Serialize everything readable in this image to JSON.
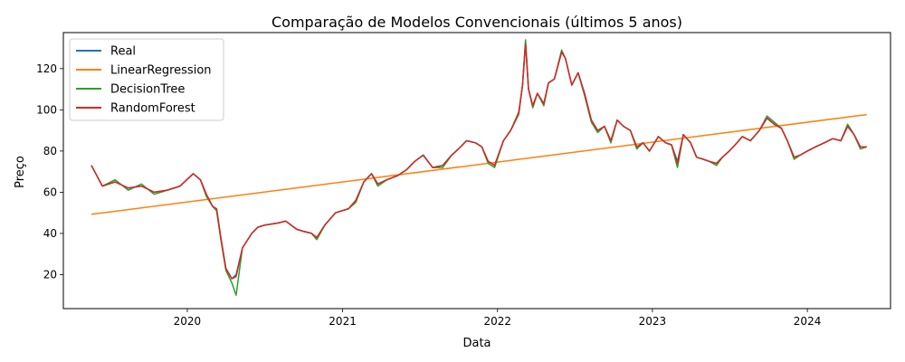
{
  "chart_data": {
    "type": "line",
    "title": "Comparação de Modelos Convencionais (últimos 5 anos)",
    "xlabel": "Data",
    "ylabel": "Preço",
    "xlim": [
      "2019-03-15",
      "2024-07-15"
    ],
    "ylim": [
      3.5,
      137.5
    ],
    "x_ticks": [
      {
        "date": "2020-01-01",
        "label": "2020"
      },
      {
        "date": "2021-01-01",
        "label": "2021"
      },
      {
        "date": "2022-01-01",
        "label": "2022"
      },
      {
        "date": "2023-01-01",
        "label": "2023"
      },
      {
        "date": "2024-01-01",
        "label": "2024"
      }
    ],
    "y_ticks": [
      20,
      40,
      60,
      80,
      100,
      120
    ],
    "grid": false,
    "legend_position": "upper-left",
    "series": [
      {
        "name": "Real",
        "color": "#1f77b4",
        "dates": [
          "2019-05-20",
          "2019-06-15",
          "2019-07-15",
          "2019-08-15",
          "2019-09-15",
          "2019-10-15",
          "2019-11-15",
          "2019-12-15",
          "2020-01-15",
          "2020-02-01",
          "2020-02-15",
          "2020-03-01",
          "2020-03-10",
          "2020-03-20",
          "2020-04-01",
          "2020-04-15",
          "2020-04-25",
          "2020-05-10",
          "2020-06-01",
          "2020-06-15",
          "2020-07-01",
          "2020-08-01",
          "2020-08-20",
          "2020-09-15",
          "2020-10-01",
          "2020-10-20",
          "2020-11-01",
          "2020-11-20",
          "2020-12-15",
          "2021-01-15",
          "2021-02-01",
          "2021-02-20",
          "2021-03-10",
          "2021-03-25",
          "2021-04-15",
          "2021-05-10",
          "2021-06-01",
          "2021-06-20",
          "2021-07-10",
          "2021-08-01",
          "2021-08-25",
          "2021-09-15",
          "2021-10-01",
          "2021-10-20",
          "2021-11-10",
          "2021-11-25",
          "2021-12-10",
          "2021-12-25",
          "2022-01-15",
          "2022-02-01",
          "2022-02-20",
          "2022-03-01",
          "2022-03-08",
          "2022-03-15",
          "2022-03-25",
          "2022-04-05",
          "2022-04-20",
          "2022-05-01",
          "2022-05-15",
          "2022-06-01",
          "2022-06-10",
          "2022-06-25",
          "2022-07-10",
          "2022-07-25",
          "2022-08-10",
          "2022-08-25",
          "2022-09-10",
          "2022-09-25",
          "2022-10-10",
          "2022-10-25",
          "2022-11-10",
          "2022-11-25",
          "2022-12-10",
          "2022-12-25",
          "2023-01-15",
          "2023-02-01",
          "2023-02-15",
          "2023-03-01",
          "2023-03-15",
          "2023-04-01",
          "2023-04-15",
          "2023-05-01",
          "2023-05-15",
          "2023-06-01",
          "2023-06-15",
          "2023-07-01",
          "2023-07-15",
          "2023-08-01",
          "2023-08-20",
          "2023-09-10",
          "2023-09-28",
          "2023-10-15",
          "2023-11-01",
          "2023-11-15",
          "2023-12-01",
          "2023-12-15",
          "2024-01-01",
          "2024-01-20",
          "2024-02-10",
          "2024-03-01",
          "2024-03-20",
          "2024-04-05",
          "2024-04-20",
          "2024-05-05",
          "2024-05-20"
        ],
        "values": [
          73,
          63,
          65,
          62,
          63,
          60,
          61,
          63,
          69,
          66,
          59,
          53,
          52,
          38,
          23,
          18,
          20,
          33,
          40,
          43,
          44,
          45,
          46,
          42,
          41,
          40,
          38,
          44,
          50,
          52,
          56,
          65,
          69,
          64,
          66,
          68,
          71,
          75,
          78,
          72,
          73,
          78,
          81,
          85,
          84,
          82,
          75,
          73,
          85,
          90,
          98,
          112,
          133,
          110,
          102,
          108,
          103,
          113,
          115,
          128,
          125,
          112,
          118,
          108,
          95,
          90,
          92,
          85,
          95,
          92,
          90,
          82,
          84,
          80,
          87,
          84,
          83,
          75,
          88,
          84,
          77,
          76,
          75,
          74,
          77,
          80,
          83,
          87,
          85,
          90,
          96,
          93,
          91,
          85,
          77,
          78,
          80,
          82,
          84,
          86,
          85,
          92,
          88,
          82,
          82
        ]
      },
      {
        "name": "LinearRegression",
        "color": "#ff7f0e",
        "dates": [
          "2019-05-20",
          "2024-05-20"
        ],
        "values": [
          49.3,
          97.7
        ]
      },
      {
        "name": "DecisionTree",
        "color": "#2ca02c",
        "dates": [
          "2019-05-20",
          "2019-06-15",
          "2019-07-15",
          "2019-08-15",
          "2019-09-15",
          "2019-10-15",
          "2019-11-15",
          "2019-12-15",
          "2020-01-15",
          "2020-02-01",
          "2020-02-15",
          "2020-03-01",
          "2020-03-10",
          "2020-03-20",
          "2020-04-01",
          "2020-04-15",
          "2020-04-25",
          "2020-05-10",
          "2020-06-01",
          "2020-06-15",
          "2020-07-01",
          "2020-08-01",
          "2020-08-20",
          "2020-09-15",
          "2020-10-01",
          "2020-10-20",
          "2020-11-01",
          "2020-11-20",
          "2020-12-15",
          "2021-01-15",
          "2021-02-01",
          "2021-02-20",
          "2021-03-10",
          "2021-03-25",
          "2021-04-15",
          "2021-05-10",
          "2021-06-01",
          "2021-06-20",
          "2021-07-10",
          "2021-08-01",
          "2021-08-25",
          "2021-09-15",
          "2021-10-01",
          "2021-10-20",
          "2021-11-10",
          "2021-11-25",
          "2021-12-10",
          "2021-12-25",
          "2022-01-15",
          "2022-02-01",
          "2022-02-20",
          "2022-03-01",
          "2022-03-08",
          "2022-03-15",
          "2022-03-25",
          "2022-04-05",
          "2022-04-20",
          "2022-05-01",
          "2022-05-15",
          "2022-06-01",
          "2022-06-10",
          "2022-06-25",
          "2022-07-10",
          "2022-07-25",
          "2022-08-10",
          "2022-08-25",
          "2022-09-10",
          "2022-09-25",
          "2022-10-10",
          "2022-10-25",
          "2022-11-10",
          "2022-11-25",
          "2022-12-10",
          "2022-12-25",
          "2023-01-15",
          "2023-02-01",
          "2023-02-15",
          "2023-03-01",
          "2023-03-15",
          "2023-04-01",
          "2023-04-15",
          "2023-05-01",
          "2023-05-15",
          "2023-06-01",
          "2023-06-15",
          "2023-07-01",
          "2023-07-15",
          "2023-08-01",
          "2023-08-20",
          "2023-09-10",
          "2023-09-28",
          "2023-10-15",
          "2023-11-01",
          "2023-11-15",
          "2023-12-01",
          "2023-12-15",
          "2024-01-01",
          "2024-01-20",
          "2024-02-10",
          "2024-03-01",
          "2024-03-20",
          "2024-04-05",
          "2024-04-20",
          "2024-05-05",
          "2024-05-20"
        ],
        "values": [
          73,
          63,
          66,
          61,
          64,
          59,
          61,
          63,
          69,
          66,
          58,
          53,
          51,
          37,
          22,
          16,
          10,
          33,
          40,
          43,
          44,
          45,
          46,
          42,
          41,
          40,
          37,
          44,
          50,
          52,
          55,
          65,
          69,
          63,
          66,
          68,
          71,
          75,
          78,
          72,
          72,
          78,
          81,
          85,
          84,
          82,
          74,
          72,
          85,
          90,
          99,
          112,
          134,
          110,
          101,
          108,
          102,
          113,
          115,
          129,
          125,
          112,
          118,
          107,
          94,
          89,
          92,
          84,
          95,
          92,
          90,
          81,
          84,
          80,
          87,
          84,
          83,
          72,
          88,
          84,
          77,
          76,
          75,
          73,
          77,
          80,
          83,
          87,
          85,
          90,
          97,
          94,
          91,
          85,
          76,
          78,
          80,
          82,
          84,
          86,
          85,
          93,
          88,
          81,
          82
        ]
      },
      {
        "name": "RandomForest",
        "color": "#d62728",
        "dates": [
          "2019-05-20",
          "2019-06-15",
          "2019-07-15",
          "2019-08-15",
          "2019-09-15",
          "2019-10-15",
          "2019-11-15",
          "2019-12-15",
          "2020-01-15",
          "2020-02-01",
          "2020-02-15",
          "2020-03-01",
          "2020-03-10",
          "2020-03-20",
          "2020-04-01",
          "2020-04-15",
          "2020-04-25",
          "2020-05-10",
          "2020-06-01",
          "2020-06-15",
          "2020-07-01",
          "2020-08-01",
          "2020-08-20",
          "2020-09-15",
          "2020-10-01",
          "2020-10-20",
          "2020-11-01",
          "2020-11-20",
          "2020-12-15",
          "2021-01-15",
          "2021-02-01",
          "2021-02-20",
          "2021-03-10",
          "2021-03-25",
          "2021-04-15",
          "2021-05-10",
          "2021-06-01",
          "2021-06-20",
          "2021-07-10",
          "2021-08-01",
          "2021-08-25",
          "2021-09-15",
          "2021-10-01",
          "2021-10-20",
          "2021-11-10",
          "2021-11-25",
          "2021-12-10",
          "2021-12-25",
          "2022-01-15",
          "2022-02-01",
          "2022-02-20",
          "2022-03-01",
          "2022-03-08",
          "2022-03-15",
          "2022-03-25",
          "2022-04-05",
          "2022-04-20",
          "2022-05-01",
          "2022-05-15",
          "2022-06-01",
          "2022-06-10",
          "2022-06-25",
          "2022-07-10",
          "2022-07-25",
          "2022-08-10",
          "2022-08-25",
          "2022-09-10",
          "2022-09-25",
          "2022-10-10",
          "2022-10-25",
          "2022-11-10",
          "2022-11-25",
          "2022-12-10",
          "2022-12-25",
          "2023-01-15",
          "2023-02-01",
          "2023-02-15",
          "2023-03-01",
          "2023-03-15",
          "2023-04-01",
          "2023-04-15",
          "2023-05-01",
          "2023-05-15",
          "2023-06-01",
          "2023-06-15",
          "2023-07-01",
          "2023-07-15",
          "2023-08-01",
          "2023-08-20",
          "2023-09-10",
          "2023-09-28",
          "2023-10-15",
          "2023-11-01",
          "2023-11-15",
          "2023-12-01",
          "2023-12-15",
          "2024-01-01",
          "2024-01-20",
          "2024-02-10",
          "2024-03-01",
          "2024-03-20",
          "2024-04-05",
          "2024-04-20",
          "2024-05-05",
          "2024-05-20"
        ],
        "values": [
          73,
          63,
          65,
          62,
          63,
          60,
          61,
          63,
          69,
          66,
          59,
          53,
          52,
          38,
          23,
          18,
          19,
          33,
          40,
          43,
          44,
          45,
          46,
          42,
          41,
          40,
          38,
          44,
          50,
          52,
          56,
          65,
          69,
          64,
          66,
          68,
          71,
          75,
          78,
          72,
          73,
          78,
          81,
          85,
          84,
          82,
          75,
          73,
          85,
          90,
          98,
          112,
          132,
          110,
          102,
          108,
          103,
          113,
          115,
          128,
          125,
          112,
          118,
          108,
          95,
          90,
          92,
          85,
          95,
          92,
          90,
          82,
          84,
          80,
          87,
          84,
          83,
          74,
          88,
          84,
          77,
          76,
          75,
          74,
          77,
          80,
          83,
          87,
          85,
          90,
          96,
          93,
          91,
          85,
          77,
          78,
          80,
          82,
          84,
          86,
          85,
          92,
          88,
          82,
          82
        ]
      }
    ]
  }
}
